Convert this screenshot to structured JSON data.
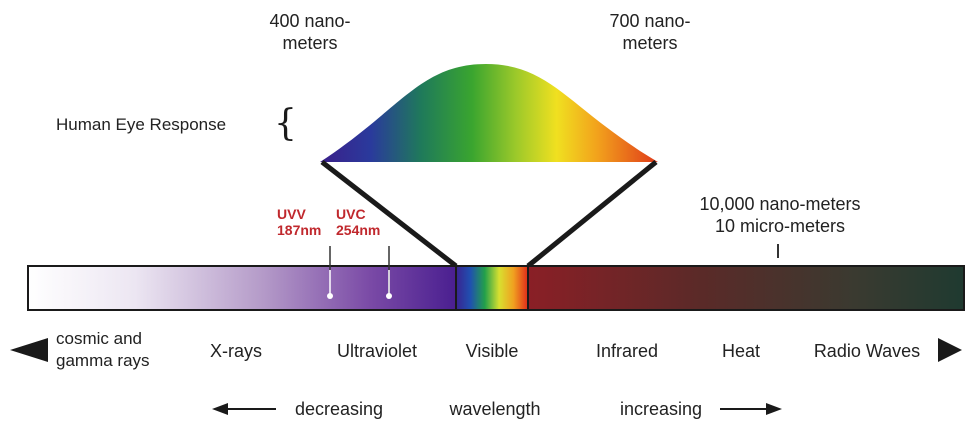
{
  "top_labels": {
    "left_line1": "400 nano-",
    "left_line2": "meters",
    "right_line1": "700 nano-",
    "right_line2": "meters"
  },
  "eye_response_label": "Human Eye Response",
  "uv_markers": [
    {
      "name": "UVV",
      "value": "187nm"
    },
    {
      "name": "UVC",
      "value": "254nm"
    }
  ],
  "long_wave_note": {
    "line1": "10,000 nano-meters",
    "line2": "10 micro-meters"
  },
  "bands": [
    {
      "line1": "cosmic and",
      "line2": "gamma rays"
    },
    {
      "line1": "X-rays"
    },
    {
      "line1": "Ultraviolet"
    },
    {
      "line1": "Visible"
    },
    {
      "line1": "Infrared"
    },
    {
      "line1": "Heat"
    },
    {
      "line1": "Radio Waves"
    }
  ],
  "bottom_axis": {
    "left": "decreasing",
    "center": "wavelength",
    "right": "increasing"
  },
  "colors": {
    "uv_marker_text": "#c0282d",
    "outline": "#1a1a1a"
  }
}
